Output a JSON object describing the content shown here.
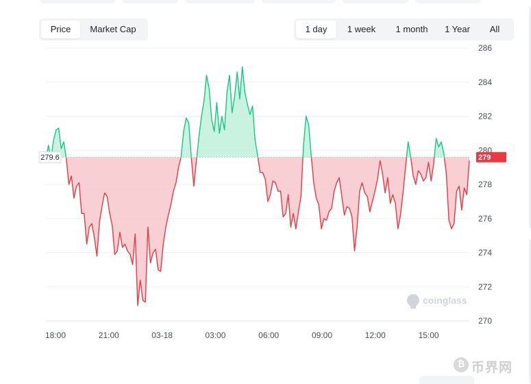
{
  "metric_toggle": {
    "options": [
      "Price",
      "Market Cap"
    ],
    "selected": "Price"
  },
  "timeframes": {
    "options": [
      "1 day",
      "1 week",
      "1 month",
      "1 Year",
      "All"
    ],
    "selected": "1 day"
  },
  "watermark": {
    "brand": "coinglass",
    "icon": "coinglass-logo-icon"
  },
  "footer_watermark": {
    "text": "币界网",
    "icon": "coin-circle-icon"
  },
  "colors": {
    "up": "#16c784",
    "down": "#ea3943",
    "up_fill": "#bff0da",
    "down_fill": "#f7c7cb",
    "grid": "#eef0f2"
  },
  "chart_data": {
    "type": "area",
    "baseline": 279.6,
    "baseline_label": "279.6",
    "current_label": "279",
    "ylim": [
      270,
      286
    ],
    "yticks": [
      270,
      272,
      274,
      276,
      278,
      280,
      282,
      284,
      286
    ],
    "xticks": [
      "18:00",
      "21:00",
      "03-18",
      "03:00",
      "06:00",
      "09:00",
      "12:00",
      "15:00"
    ],
    "xlabel": "",
    "ylabel": "",
    "grid": true,
    "series": [
      {
        "y": [
          279.4,
          280.3,
          279.5,
          280.6,
          281.2,
          281.3,
          280.1,
          280.5,
          279.5,
          278.0,
          278.5,
          277.2,
          277.9,
          278.1,
          276.3,
          276.3,
          274.5,
          275.5,
          275.7,
          274.9,
          273.8,
          275.8,
          276.7,
          277.5,
          277.3,
          276.3,
          275.6,
          273.9,
          274.1,
          275.2,
          274.3,
          274.5,
          274.1,
          273.9,
          273.3,
          275.1,
          270.9,
          272.4,
          271.2,
          271.1,
          275.5,
          273.4,
          274.0,
          274.2,
          273.0,
          272.9,
          274.5,
          275.5,
          276.2,
          276.8,
          277.6,
          278.1,
          279.0,
          279.6,
          281.1,
          281.9,
          281.6,
          279.6,
          277.9,
          279.4,
          280.8,
          282.0,
          282.9,
          284.4,
          283.6,
          281.8,
          281.1,
          282.8,
          281.0,
          282.0,
          281.2,
          283.4,
          284.4,
          282.2,
          283.2,
          284.6,
          283.0,
          284.9,
          283.4,
          282.7,
          282.1,
          282.6,
          280.6,
          279.7,
          278.7,
          278.7,
          278.3,
          277.0,
          277.4,
          278.2,
          278.1,
          277.6,
          277.6,
          276.1,
          276.3,
          277.4,
          275.5,
          276.3,
          275.4,
          276.4,
          277.3,
          280.3,
          282.0,
          281.5,
          279.7,
          278.1,
          277.2,
          276.8,
          275.4,
          276.0,
          275.9,
          276.4,
          276.6,
          277.6,
          278.1,
          278.4,
          277.3,
          276.2,
          276.7,
          276.6,
          276.1,
          274.1,
          275.5,
          277.6,
          278.1,
          277.5,
          277.3,
          276.4,
          277.0,
          277.6,
          278.3,
          279.4,
          278.6,
          277.5,
          278.4,
          276.9,
          277.4,
          276.9,
          275.4,
          276.2,
          277.5,
          279.0,
          280.5,
          279.6,
          278.5,
          278.0,
          278.8,
          278.6,
          278.2,
          278.4,
          279.3,
          278.2,
          279.2,
          280.7,
          280.2,
          280.5,
          279.8,
          278.6,
          275.9,
          275.4,
          275.7,
          277.6,
          277.9,
          276.5,
          277.8,
          277.4,
          279.4
        ]
      }
    ]
  }
}
